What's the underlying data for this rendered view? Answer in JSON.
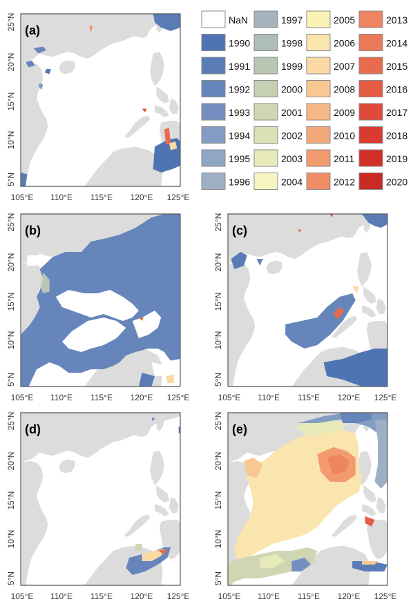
{
  "axes": {
    "x_ticks": [
      "105°E",
      "110°E",
      "115°E",
      "120°E",
      "125°E"
    ],
    "y_ticks": [
      "25°N",
      "20°N",
      "15°N",
      "10°N",
      "5°N"
    ]
  },
  "panels": [
    {
      "id": "a",
      "label": "(a)"
    },
    {
      "id": "b",
      "label": "(b)"
    },
    {
      "id": "c",
      "label": "(c)"
    },
    {
      "id": "d",
      "label": "(d)"
    },
    {
      "id": "e",
      "label": "(e)"
    }
  ],
  "legend": {
    "items": [
      {
        "label": "NaN",
        "color": "#ffffff"
      },
      {
        "label": "1990",
        "color": "#4f74b3"
      },
      {
        "label": "1991",
        "color": "#5a7cb6"
      },
      {
        "label": "1992",
        "color": "#6686bb"
      },
      {
        "label": "1993",
        "color": "#7590c0"
      },
      {
        "label": "1994",
        "color": "#839cc3"
      },
      {
        "label": "1995",
        "color": "#90a6c5"
      },
      {
        "label": "1996",
        "color": "#9daec5"
      },
      {
        "label": "1997",
        "color": "#a4b4bd"
      },
      {
        "label": "1998",
        "color": "#aebdb8"
      },
      {
        "label": "1999",
        "color": "#b8c5b3"
      },
      {
        "label": "2000",
        "color": "#c4cfb3"
      },
      {
        "label": "2001",
        "color": "#cfd6b2"
      },
      {
        "label": "2002",
        "color": "#dbdfb4"
      },
      {
        "label": "2003",
        "color": "#e8e9ba"
      },
      {
        "label": "2004",
        "color": "#f6f5bf"
      },
      {
        "label": "2005",
        "color": "#fbf3b6"
      },
      {
        "label": "2006",
        "color": "#fbe5ae"
      },
      {
        "label": "2007",
        "color": "#fbd9a4"
      },
      {
        "label": "2008",
        "color": "#f8c893"
      },
      {
        "label": "2009",
        "color": "#f6b886"
      },
      {
        "label": "2010",
        "color": "#f4a97a"
      },
      {
        "label": "2011",
        "color": "#f29b6f"
      },
      {
        "label": "2012",
        "color": "#f08d65"
      },
      {
        "label": "2013",
        "color": "#ee8460"
      },
      {
        "label": "2014",
        "color": "#ec7a59"
      },
      {
        "label": "2015",
        "color": "#e96b4f"
      },
      {
        "label": "2016",
        "color": "#e55b43"
      },
      {
        "label": "2017",
        "color": "#e04a3a"
      },
      {
        "label": "2018",
        "color": "#da3b31"
      },
      {
        "label": "2019",
        "color": "#d22f29"
      },
      {
        "label": "2020",
        "color": "#c92a24"
      }
    ]
  },
  "colors": {
    "land": "#dcdcdc",
    "frame": "#555555"
  }
}
